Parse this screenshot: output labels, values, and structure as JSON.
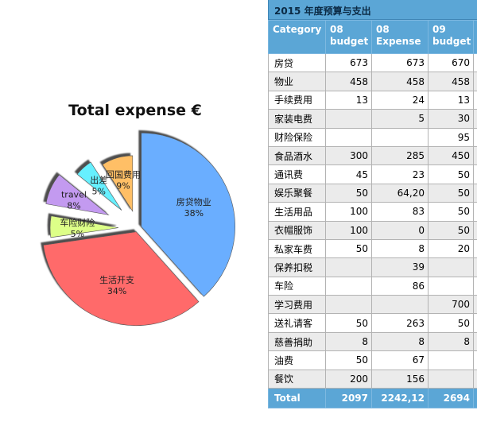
{
  "chart_data": {
    "type": "pie",
    "title": "Total expense €",
    "slices": [
      {
        "label": "房贷物业",
        "percent_label": "38%",
        "value": 38,
        "color": "#6aaeff"
      },
      {
        "label": "生活开支",
        "percent_label": "34%",
        "value": 34,
        "color": "#ff6b6b"
      },
      {
        "label": "车险财险",
        "percent_label": "5%",
        "value": 5,
        "color": "#ddff88"
      },
      {
        "label": "travel",
        "percent_label": "8%",
        "value": 8,
        "color": "#c39af0"
      },
      {
        "label": "出差",
        "percent_label": "5%",
        "value": 5,
        "color": "#66f0ff"
      },
      {
        "label": "回国费用",
        "percent_label": "9%",
        "value": 9,
        "color": "#ffbf66"
      }
    ],
    "legend": "none",
    "exploded": true
  },
  "table": {
    "title": "2015 年度预算与支出",
    "headers": [
      "Category",
      "08 budget",
      "08 Expense",
      "09 budget",
      ""
    ],
    "rows": [
      [
        "房贷",
        "673",
        "673",
        "670",
        ""
      ],
      [
        "物业",
        "458",
        "458",
        "458",
        ""
      ],
      [
        "手续费用",
        "13",
        "24",
        "13",
        ""
      ],
      [
        "家装电费",
        "",
        "5",
        "30",
        ""
      ],
      [
        "财险保险",
        "",
        "",
        "95",
        ""
      ],
      [
        "食品酒水",
        "300",
        "285",
        "450",
        ""
      ],
      [
        "通讯费",
        "45",
        "23",
        "50",
        ""
      ],
      [
        "娱乐聚餐",
        "50",
        "64,20",
        "50",
        ""
      ],
      [
        "生活用品",
        "100",
        "83",
        "50",
        ""
      ],
      [
        "衣帽服饰",
        "100",
        "0",
        "50",
        ""
      ],
      [
        "私家车费",
        "50",
        "8",
        "20",
        ""
      ],
      [
        "保养扣税",
        "",
        "39",
        "",
        ""
      ],
      [
        "车险",
        "",
        "86",
        "",
        ""
      ],
      [
        "学习费用",
        "",
        "",
        "700",
        ""
      ],
      [
        "送礼请客",
        "50",
        "263",
        "50",
        ""
      ],
      [
        "慈善捐助",
        "8",
        "8",
        "8",
        ""
      ],
      [
        "油费",
        "50",
        "67",
        "",
        ""
      ],
      [
        "餐饮",
        "200",
        "156",
        "",
        ""
      ]
    ],
    "total": [
      "Total",
      "2097",
      "2242,12",
      "2694",
      ""
    ]
  }
}
